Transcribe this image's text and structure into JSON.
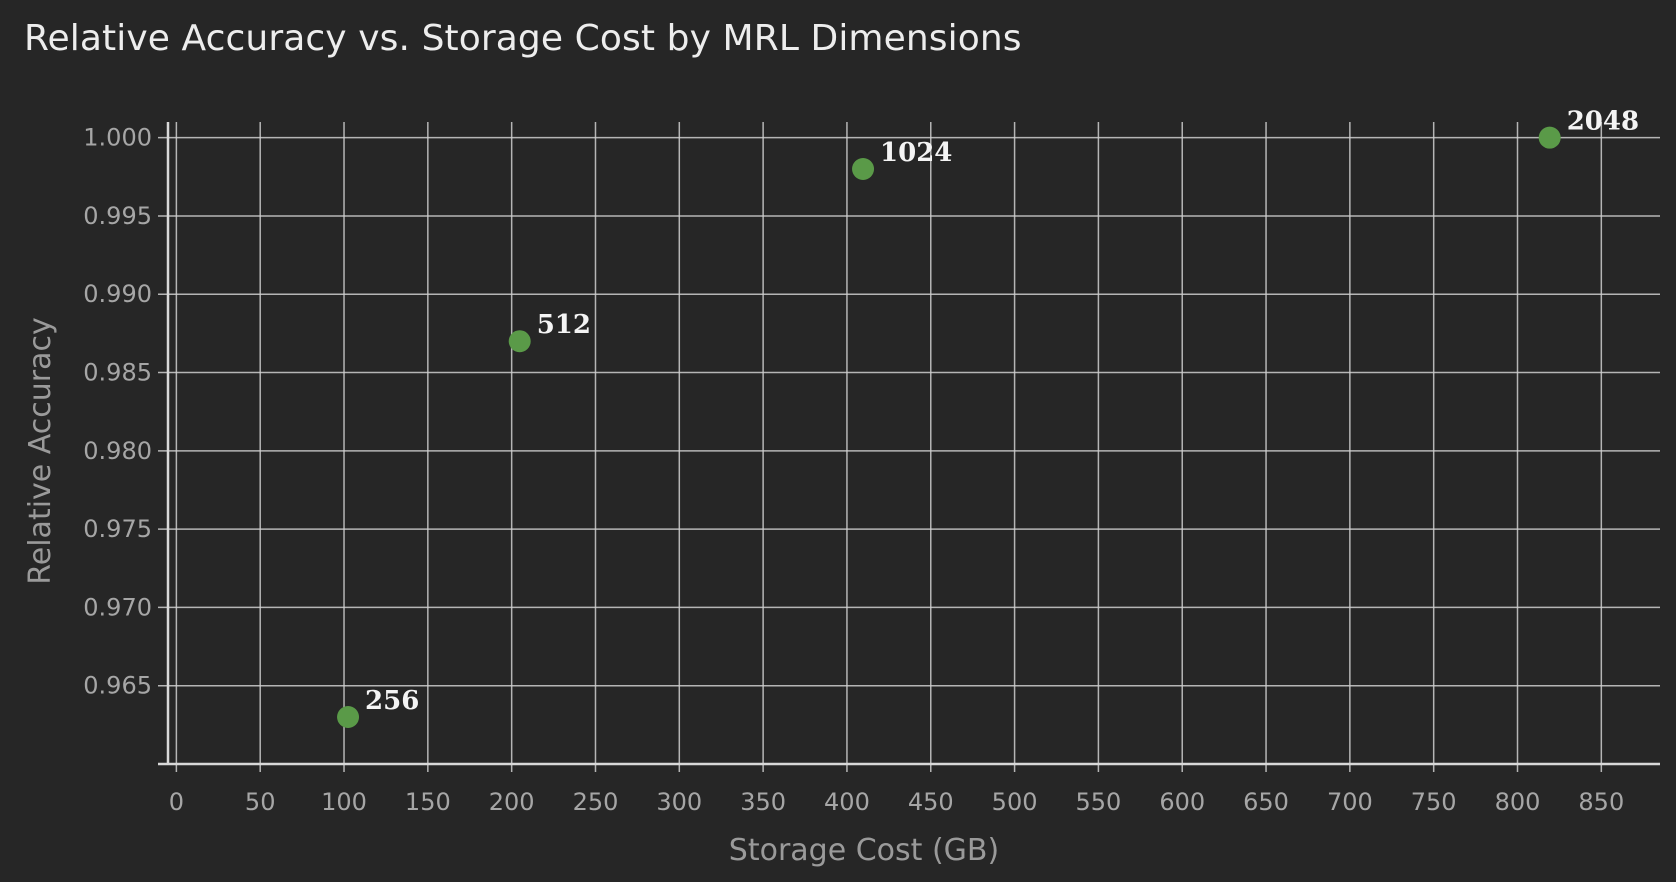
{
  "chart_data": {
    "type": "scatter",
    "title": "Relative Accuracy vs. Storage Cost by MRL Dimensions",
    "xlabel": "Storage Cost (GB)",
    "ylabel": "Relative Accuracy",
    "xlim": [
      -5,
      885
    ],
    "ylim": [
      0.96,
      1.001
    ],
    "xticks": [
      0,
      50,
      100,
      150,
      200,
      250,
      300,
      350,
      400,
      450,
      500,
      550,
      600,
      650,
      700,
      750,
      800,
      850
    ],
    "yticks": [
      0.965,
      0.97,
      0.975,
      0.98,
      0.985,
      0.99,
      0.995,
      1.0
    ],
    "ytick_labels": [
      "0.965",
      "0.970",
      "0.975",
      "0.980",
      "0.985",
      "0.990",
      "0.995",
      "1.000"
    ],
    "grid": true,
    "legend": "none",
    "series": [
      {
        "color": "#5a9a48",
        "points": [
          {
            "x": 102.4,
            "y": 0.963,
            "label": "256"
          },
          {
            "x": 204.8,
            "y": 0.987,
            "label": "512"
          },
          {
            "x": 409.6,
            "y": 0.998,
            "label": "1024"
          },
          {
            "x": 819.2,
            "y": 1.0,
            "label": "2048"
          }
        ]
      }
    ]
  }
}
